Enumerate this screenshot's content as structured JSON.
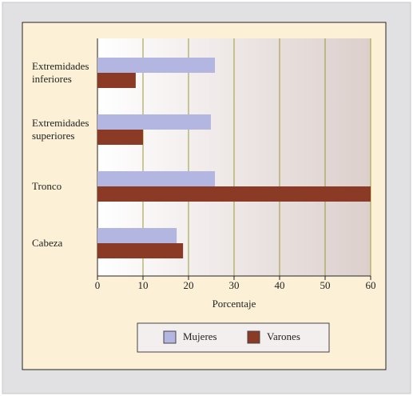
{
  "chart_data": {
    "type": "bar",
    "orientation": "horizontal",
    "categories": [
      "Extremidades inferiores",
      "Extremidades superiores",
      "Tronco",
      "Cabeza"
    ],
    "series": [
      {
        "name": "Mujeres",
        "color": "#b3b6e0",
        "values": [
          25.8,
          24.9,
          25.8,
          17.4
        ]
      },
      {
        "name": "Varones",
        "color": "#8b3a26",
        "values": [
          8.4,
          10,
          60,
          18.8
        ]
      }
    ],
    "xlabel": "Porcentaje",
    "xlim": [
      0,
      60
    ],
    "xticks": [
      0,
      10,
      20,
      30,
      40,
      50,
      60
    ],
    "grid": true
  }
}
